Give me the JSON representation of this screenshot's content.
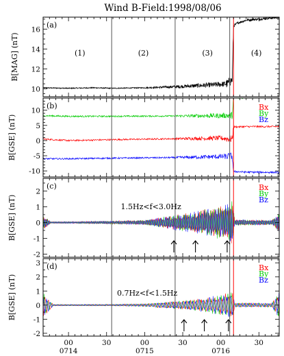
{
  "title": "Wind B-Field:1998/08/06",
  "colors": {
    "black": "#000000",
    "red": "#ff0000",
    "green": "#00cc00",
    "blue": "#0000ff",
    "vline": "#555555",
    "shock": "#ff0000"
  },
  "x_axis": {
    "range_min": [
      0,
      60
    ],
    "ticks": [
      {
        "t": 0,
        "line1": "00",
        "line2": "0714"
      },
      {
        "t": 30,
        "line1": "30",
        "line2": ""
      },
      {
        "t": 60,
        "line1": "00",
        "line2": "0715"
      },
      {
        "t": 90,
        "line1": "30",
        "line2": ""
      },
      {
        "t": 120,
        "line1": "00",
        "line2": "0716"
      },
      {
        "t": 150,
        "line1": "30",
        "line2": ""
      }
    ],
    "domain_seconds": [
      -20,
      166
    ],
    "minor_step": 5
  },
  "region_boundaries_s": [
    34,
    84,
    127
  ],
  "shock_time_s": 130,
  "panels": [
    {
      "letter": "(a)",
      "ylabel": "B[MAG] (nT)",
      "ylim": [
        9.2,
        17.2
      ],
      "yticks": [
        10,
        12,
        14,
        16
      ],
      "minor_step": 0.5,
      "regions": [
        "(1)",
        "(2)",
        "(3)",
        "(4)"
      ],
      "region_label_y": 13.6
    },
    {
      "letter": "(b)",
      "ylabel": "B[GSE] (nT)",
      "ylim": [
        -12,
        14
      ],
      "yticks": [
        -10,
        -5,
        0,
        5,
        10
      ],
      "minor_step": 1,
      "legend": [
        "Bx",
        "By",
        "Bz"
      ]
    },
    {
      "letter": "(c)",
      "ylabel": "B[GSE] (nT)",
      "ylim": [
        -2.2,
        2.8
      ],
      "yticks": [
        -2,
        -1,
        0,
        1,
        2
      ],
      "minor_step": 0.5,
      "band": "1.5Hz<f<3.0Hz",
      "legend": [
        "Bx",
        "By",
        "Bz"
      ],
      "arrows_s": [
        83,
        100,
        125
      ]
    },
    {
      "letter": "(d)",
      "ylabel": "B[GSE] (nT)",
      "ylim": [
        -2.2,
        3.3
      ],
      "yticks": [
        -2,
        -1,
        0,
        1,
        2,
        3
      ],
      "minor_step": 0.5,
      "band": "0.7Hz<f<1.5Hz",
      "legend": [
        "Bx",
        "By",
        "Bz"
      ],
      "arrows_s": [
        91,
        107,
        126
      ]
    }
  ],
  "chart_data": {
    "type": "line",
    "title": "Wind B-Field:1998/08/06",
    "xlabel": "",
    "x_units": "seconds after 07:14:00 UT (ticks every 30 s)",
    "panels": [
      {
        "id": "a",
        "ylabel": "B[MAG] (nT)",
        "series": [
          {
            "name": "|B|",
            "x": [
              -20,
              0,
              20,
              34,
              60,
              84,
              100,
              115,
              125,
              129,
              130,
              133,
              140,
              150,
              166
            ],
            "values": [
              10.1,
              10.05,
              10.1,
              10.05,
              10.1,
              10.2,
              10.3,
              10.4,
              10.5,
              10.9,
              16.3,
              16.6,
              16.9,
              17.0,
              17.2
            ]
          }
        ]
      },
      {
        "id": "b",
        "ylabel": "B[GSE] (nT)",
        "series": [
          {
            "name": "Bx",
            "x": [
              -20,
              0,
              34,
              84,
              120,
              129,
              130,
              140,
              166
            ],
            "values": [
              0.5,
              0.0,
              0.3,
              0.6,
              0.8,
              0.5,
              4.5,
              4.6,
              4.6
            ]
          },
          {
            "name": "By",
            "x": [
              -20,
              0,
              34,
              84,
              120,
              129,
              130,
              140,
              166
            ],
            "values": [
              8.2,
              8.0,
              8.0,
              8.1,
              8.2,
              8.3,
              14.0,
              14.2,
              14.5
            ]
          },
          {
            "name": "Bz",
            "x": [
              -20,
              0,
              34,
              84,
              120,
              129,
              130,
              140,
              166
            ],
            "values": [
              -6.0,
              -6.0,
              -5.8,
              -5.6,
              -5.3,
              -5.2,
              -10.2,
              -10.4,
              -10.5
            ]
          }
        ]
      },
      {
        "id": "c",
        "ylabel": "B[GSE] (nT)",
        "band": "1.5Hz<f<3.0Hz",
        "envelope_amplitude_nT": [
          {
            "x": -20,
            "amp": 0.5
          },
          {
            "x": -14,
            "amp": 0.06
          },
          {
            "x": 0,
            "amp": 0.06
          },
          {
            "x": 34,
            "amp": 0.1
          },
          {
            "x": 60,
            "amp": 0.15
          },
          {
            "x": 84,
            "amp": 0.5
          },
          {
            "x": 100,
            "amp": 0.7
          },
          {
            "x": 125,
            "amp": 1.2
          },
          {
            "x": 129,
            "amp": 1.4
          },
          {
            "x": 131,
            "amp": 0.2
          },
          {
            "x": 160,
            "amp": 0.15
          },
          {
            "x": 166,
            "amp": 0.6
          }
        ],
        "series_names": [
          "Bx",
          "By",
          "Bz"
        ]
      },
      {
        "id": "d",
        "ylabel": "B[GSE] (nT)",
        "band": "0.7Hz<f<1.5Hz",
        "envelope_amplitude_nT": [
          {
            "x": -20,
            "amp": 0.9
          },
          {
            "x": -12,
            "amp": 0.06
          },
          {
            "x": 0,
            "amp": 0.05
          },
          {
            "x": 34,
            "amp": 0.06
          },
          {
            "x": 60,
            "amp": 0.1
          },
          {
            "x": 91,
            "amp": 0.35
          },
          {
            "x": 107,
            "amp": 0.5
          },
          {
            "x": 126,
            "amp": 0.9
          },
          {
            "x": 129,
            "amp": 1.1
          },
          {
            "x": 131,
            "amp": 0.15
          },
          {
            "x": 160,
            "amp": 0.15
          },
          {
            "x": 166,
            "amp": 1.0
          }
        ],
        "series_names": [
          "Bx",
          "By",
          "Bz"
        ]
      }
    ],
    "grid": false,
    "legend": "top-right"
  }
}
